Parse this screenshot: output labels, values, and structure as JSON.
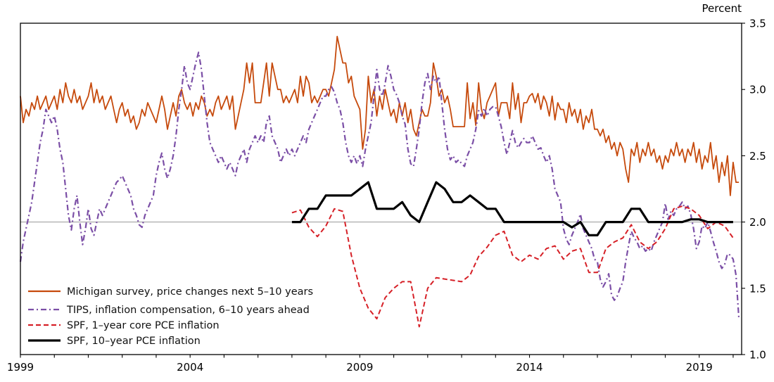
{
  "header": {
    "unit_label": "Percent"
  },
  "chart_data": {
    "type": "line",
    "title": "",
    "ylabel": "Percent",
    "xlabel": "",
    "ylim": [
      1.0,
      3.5
    ],
    "xlim": [
      1999,
      2020.25
    ],
    "grid": false,
    "legend_position": "lower-left",
    "yticks": [
      1.0,
      1.5,
      2.0,
      2.5,
      3.0,
      3.5
    ],
    "ytick_labels": [
      "1.0",
      "1.5",
      "2.0",
      "2.5",
      "3.0",
      "3.5"
    ],
    "xtick_minor_years_start": 1999,
    "xtick_minor_years_end": 2020,
    "xticks_labeled": [
      1999,
      2004,
      2009,
      2014,
      2019
    ],
    "xtick_labels": [
      "1999",
      "2004",
      "2009",
      "2014",
      "2019"
    ],
    "reference_line": {
      "y": 2.0,
      "color": "#b0b0b0"
    },
    "series": [
      {
        "name": "michigan",
        "label": "Michigan survey, price changes next 5–10 years",
        "color": "#c64a0c",
        "style": "solid",
        "width": 1.8,
        "x_start": 1999.0,
        "x_step": 0.0833333,
        "values": [
          2.95,
          2.75,
          2.85,
          2.8,
          2.9,
          2.85,
          2.95,
          2.85,
          2.9,
          2.95,
          2.85,
          2.9,
          2.95,
          2.85,
          3.0,
          2.9,
          3.05,
          2.95,
          2.9,
          3.0,
          2.9,
          2.95,
          2.85,
          2.9,
          2.95,
          3.05,
          2.9,
          3.0,
          2.9,
          2.95,
          2.85,
          2.9,
          2.95,
          2.85,
          2.75,
          2.85,
          2.9,
          2.8,
          2.85,
          2.75,
          2.8,
          2.7,
          2.75,
          2.85,
          2.8,
          2.9,
          2.85,
          2.8,
          2.75,
          2.85,
          2.95,
          2.85,
          2.7,
          2.8,
          2.9,
          2.8,
          2.95,
          3.0,
          2.9,
          2.85,
          2.9,
          2.8,
          2.9,
          2.85,
          2.95,
          2.9,
          2.8,
          2.85,
          2.8,
          2.9,
          2.95,
          2.85,
          2.9,
          2.95,
          2.85,
          2.95,
          2.7,
          2.8,
          2.9,
          3.0,
          3.2,
          3.05,
          3.2,
          2.9,
          2.9,
          2.9,
          3.05,
          3.2,
          2.95,
          3.2,
          3.1,
          3.0,
          3.0,
          2.9,
          2.95,
          2.9,
          2.95,
          3.0,
          2.9,
          3.1,
          2.95,
          3.1,
          3.05,
          2.9,
          2.95,
          2.9,
          2.95,
          3.0,
          3.0,
          2.95,
          3.05,
          3.15,
          3.4,
          3.3,
          3.2,
          3.2,
          3.05,
          3.1,
          2.95,
          2.9,
          2.85,
          2.55,
          2.7,
          3.1,
          2.9,
          3.0,
          2.8,
          2.95,
          2.85,
          3.0,
          2.9,
          2.8,
          2.85,
          2.75,
          2.9,
          2.8,
          2.9,
          2.75,
          2.85,
          2.7,
          2.65,
          2.75,
          2.85,
          2.8,
          2.8,
          2.9,
          3.2,
          3.1,
          2.95,
          3.0,
          2.9,
          2.95,
          2.85,
          2.72,
          2.72,
          2.72,
          2.72,
          2.72,
          3.05,
          2.78,
          2.9,
          2.73,
          3.05,
          2.85,
          2.78,
          2.9,
          2.95,
          3.0,
          3.05,
          2.8,
          2.9,
          2.9,
          2.9,
          2.78,
          3.05,
          2.85,
          2.97,
          2.75,
          2.9,
          2.9,
          2.95,
          2.97,
          2.9,
          2.97,
          2.85,
          2.95,
          2.9,
          2.8,
          2.95,
          2.77,
          2.9,
          2.85,
          2.85,
          2.75,
          2.9,
          2.8,
          2.85,
          2.75,
          2.85,
          2.7,
          2.8,
          2.75,
          2.85,
          2.7,
          2.7,
          2.65,
          2.7,
          2.6,
          2.65,
          2.55,
          2.6,
          2.5,
          2.6,
          2.55,
          2.4,
          2.3,
          2.55,
          2.5,
          2.6,
          2.45,
          2.55,
          2.5,
          2.6,
          2.5,
          2.55,
          2.45,
          2.5,
          2.4,
          2.5,
          2.45,
          2.55,
          2.5,
          2.6,
          2.5,
          2.55,
          2.45,
          2.55,
          2.5,
          2.6,
          2.45,
          2.55,
          2.4,
          2.5,
          2.45,
          2.6,
          2.4,
          2.5,
          2.3,
          2.45,
          2.35,
          2.5,
          2.2,
          2.45,
          2.3,
          2.3
        ]
      },
      {
        "name": "tips",
        "label": "TIPS, inflation compensation, 6–10 years ahead",
        "color": "#7b4fa6",
        "style": "dashdot",
        "width": 2.2,
        "x_start": 1999.0,
        "x_step": 0.0833333,
        "values": [
          1.7,
          1.85,
          1.95,
          2.05,
          2.15,
          2.3,
          2.45,
          2.6,
          2.7,
          2.85,
          2.8,
          2.75,
          2.8,
          2.7,
          2.55,
          2.45,
          2.25,
          2.05,
          1.94,
          2.1,
          2.2,
          2.0,
          1.83,
          1.95,
          2.1,
          1.95,
          1.9,
          2.0,
          2.1,
          2.05,
          2.1,
          2.15,
          2.2,
          2.25,
          2.3,
          2.32,
          2.35,
          2.3,
          2.25,
          2.2,
          2.1,
          2.05,
          1.98,
          1.96,
          2.05,
          2.1,
          2.15,
          2.2,
          2.35,
          2.45,
          2.52,
          2.4,
          2.33,
          2.4,
          2.5,
          2.65,
          2.85,
          3.0,
          3.18,
          3.05,
          3.0,
          3.1,
          3.2,
          3.28,
          3.15,
          2.95,
          2.75,
          2.6,
          2.55,
          2.5,
          2.45,
          2.5,
          2.45,
          2.4,
          2.45,
          2.4,
          2.35,
          2.45,
          2.5,
          2.55,
          2.45,
          2.55,
          2.6,
          2.65,
          2.6,
          2.65,
          2.6,
          2.75,
          2.8,
          2.65,
          2.6,
          2.55,
          2.45,
          2.5,
          2.55,
          2.5,
          2.55,
          2.5,
          2.55,
          2.6,
          2.65,
          2.6,
          2.7,
          2.75,
          2.8,
          2.85,
          2.9,
          2.95,
          2.95,
          3.0,
          3.02,
          2.98,
          2.9,
          2.85,
          2.75,
          2.6,
          2.5,
          2.45,
          2.5,
          2.44,
          2.5,
          2.42,
          2.55,
          2.65,
          2.75,
          2.95,
          3.15,
          3.0,
          2.95,
          3.05,
          3.18,
          3.1,
          3.0,
          2.96,
          2.9,
          2.8,
          2.74,
          2.55,
          2.44,
          2.42,
          2.55,
          2.7,
          2.9,
          3.05,
          3.12,
          3.0,
          3.1,
          3.05,
          3.1,
          2.9,
          2.7,
          2.55,
          2.47,
          2.5,
          2.45,
          2.47,
          2.44,
          2.42,
          2.5,
          2.55,
          2.6,
          2.7,
          2.84,
          2.8,
          2.86,
          2.8,
          2.85,
          2.87,
          2.87,
          2.8,
          2.72,
          2.6,
          2.51,
          2.6,
          2.69,
          2.6,
          2.56,
          2.6,
          2.63,
          2.6,
          2.6,
          2.65,
          2.6,
          2.55,
          2.56,
          2.5,
          2.45,
          2.5,
          2.4,
          2.25,
          2.2,
          2.15,
          1.95,
          1.87,
          1.83,
          1.9,
          1.95,
          2.0,
          2.06,
          1.95,
          1.9,
          1.85,
          1.8,
          1.72,
          1.7,
          1.57,
          1.51,
          1.55,
          1.61,
          1.45,
          1.41,
          1.44,
          1.5,
          1.55,
          1.7,
          1.82,
          1.93,
          1.88,
          1.85,
          1.8,
          1.82,
          1.78,
          1.8,
          1.78,
          1.85,
          1.9,
          1.95,
          2.0,
          2.14,
          2.02,
          2.08,
          2.05,
          2.1,
          2.12,
          2.15,
          2.1,
          2.12,
          2.06,
          1.95,
          1.8,
          1.85,
          1.97,
          1.95,
          2.0,
          1.93,
          1.85,
          1.78,
          1.7,
          1.65,
          1.68,
          1.76,
          1.75,
          1.72,
          1.6,
          1.28
        ]
      },
      {
        "name": "spf-1y-core-pce",
        "label": "SPF, 1–year core PCE inflation",
        "color": "#d62027",
        "style": "dashed",
        "width": 2.0,
        "x_start": 2007.0,
        "x_step": 0.25,
        "values": [
          2.07,
          2.09,
          1.96,
          1.89,
          1.97,
          2.1,
          2.08,
          1.75,
          1.5,
          1.35,
          1.27,
          1.43,
          1.5,
          1.55,
          1.55,
          1.21,
          1.5,
          1.58,
          1.57,
          1.56,
          1.55,
          1.6,
          1.74,
          1.81,
          1.9,
          1.93,
          1.75,
          1.7,
          1.75,
          1.72,
          1.8,
          1.82,
          1.72,
          1.78,
          1.8,
          1.62,
          1.62,
          1.8,
          1.85,
          1.88,
          1.98,
          1.85,
          1.8,
          1.85,
          1.95,
          2.1,
          2.12,
          2.1,
          2.05,
          1.95,
          2.0,
          1.97,
          1.88
        ]
      },
      {
        "name": "spf-10y-pce",
        "label": "SPF, 10–year PCE inflation",
        "color": "#000000",
        "style": "solid",
        "width": 3.2,
        "x_start": 2007.0,
        "x_step": 0.25,
        "values": [
          2.0,
          2.0,
          2.1,
          2.1,
          2.2,
          2.2,
          2.2,
          2.2,
          2.25,
          2.3,
          2.1,
          2.1,
          2.1,
          2.15,
          2.05,
          2.0,
          2.15,
          2.3,
          2.25,
          2.15,
          2.15,
          2.2,
          2.15,
          2.1,
          2.1,
          2.0,
          2.0,
          2.0,
          2.0,
          2.0,
          2.0,
          2.0,
          2.0,
          1.96,
          2.0,
          1.9,
          1.9,
          2.0,
          2.0,
          2.0,
          2.1,
          2.1,
          2.0,
          2.0,
          2.0,
          2.0,
          2.0,
          2.02,
          2.02,
          2.0,
          2.0,
          2.0,
          2.0
        ]
      }
    ]
  }
}
